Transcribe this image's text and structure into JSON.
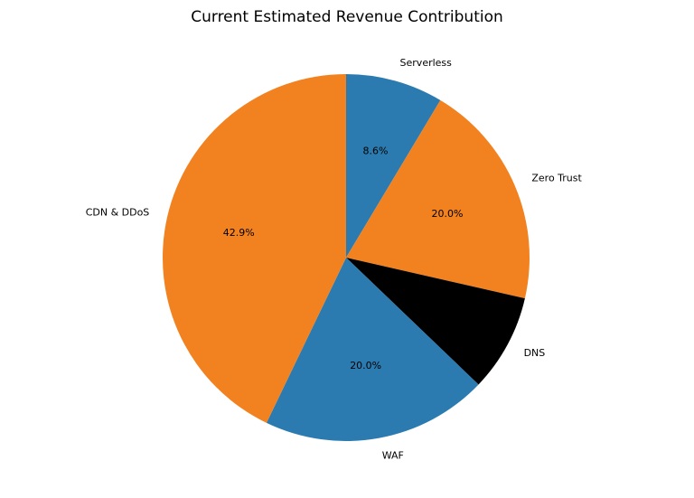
{
  "chart_data": {
    "type": "pie",
    "title": "Current Estimated Revenue Contribution",
    "start_angle_deg": 90,
    "direction": "clockwise",
    "slices": [
      {
        "label": "Serverless",
        "value": 8.6,
        "pct_label": "8.6%",
        "color": "#2c7bb0"
      },
      {
        "label": "Zero Trust",
        "value": 20.0,
        "pct_label": "20.0%",
        "color": "#f28220"
      },
      {
        "label": "DNS",
        "value": 8.6,
        "pct_label": "",
        "color": "#000000"
      },
      {
        "label": "WAF",
        "value": 20.0,
        "pct_label": "20.0%",
        "color": "#2c7bb0"
      },
      {
        "label": "CDN & DDoS",
        "value": 42.9,
        "pct_label": "42.9%",
        "color": "#f28220"
      }
    ]
  }
}
